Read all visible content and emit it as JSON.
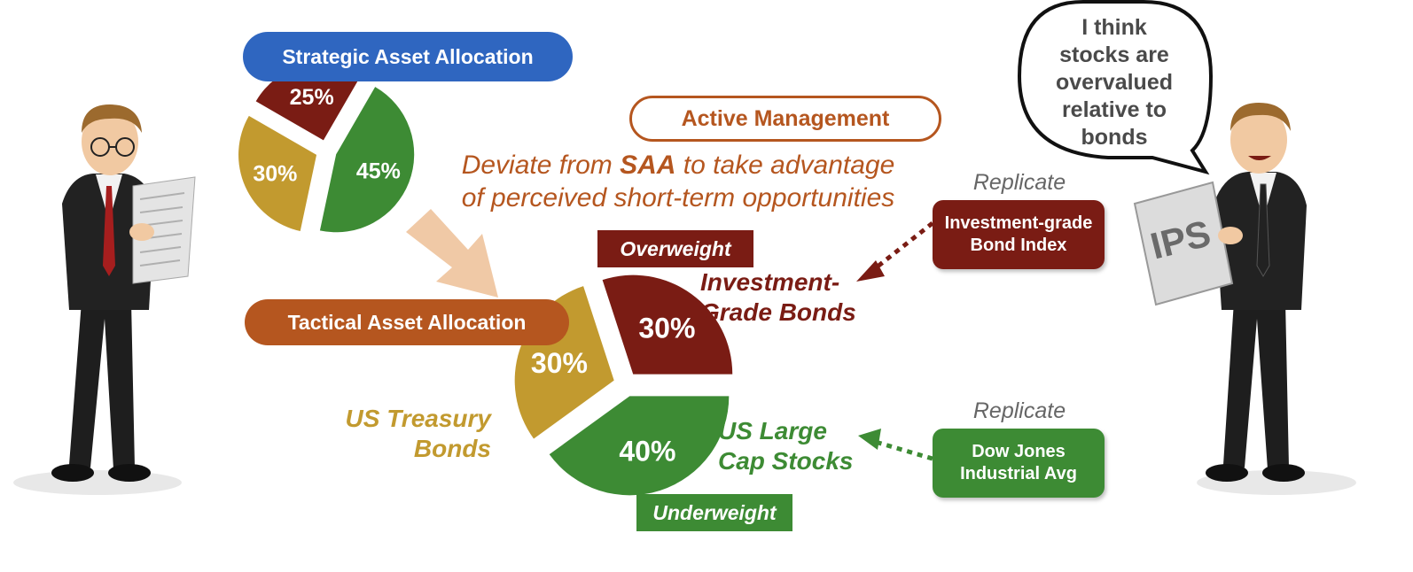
{
  "saa": {
    "title": "Strategic Asset Allocation",
    "slices": [
      {
        "label": "25%",
        "value": 25,
        "color": "#7a1c14"
      },
      {
        "label": "45%",
        "value": 45,
        "color": "#3d8b34"
      },
      {
        "label": "30%",
        "value": 30,
        "color": "#c29a2f"
      }
    ]
  },
  "active_management": {
    "title": "Active Management",
    "line1_pre": "Deviate from ",
    "line1_bold": "SAA",
    "line1_post": " to take advantage",
    "line2": "of perceived short-term opportunities"
  },
  "taa": {
    "title": "Tactical Asset Allocation",
    "slices": [
      {
        "label": "30%",
        "value": 30,
        "color": "#7a1c14"
      },
      {
        "label": "40%",
        "value": 40,
        "color": "#3d8b34"
      },
      {
        "label": "30%",
        "value": 30,
        "color": "#c29a2f"
      }
    ],
    "overweight": "Overweight",
    "underweight": "Underweight",
    "ig_bonds_line1": "Investment-",
    "ig_bonds_line2": "Grade Bonds",
    "treasury_line1": "US Treasury",
    "treasury_line2": "Bonds",
    "largecap_line1": "US Large",
    "largecap_line2": "Cap Stocks"
  },
  "replicate": {
    "label_top": "Replicate",
    "label_bottom": "Replicate",
    "ig_index_line1": "Investment-grade",
    "ig_index_line2": "Bond Index",
    "dj_line1": "Dow Jones",
    "dj_line2": "Industrial Avg"
  },
  "speech": {
    "line1": "I think",
    "line2": "stocks are",
    "line3": "overvalued",
    "line4": "relative to",
    "line5": "bonds"
  },
  "ips_label": "IPS",
  "colors": {
    "blue": "#2f66c0",
    "orange": "#b5561f",
    "maroon": "#7a1c14",
    "green": "#3d8b34",
    "gold": "#c29a2f",
    "peach": "#f0c9a6"
  }
}
